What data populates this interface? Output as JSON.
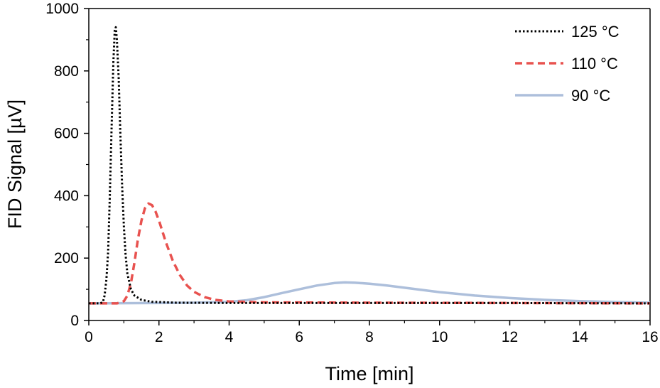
{
  "chart_data": {
    "type": "line",
    "xlabel": "Time [min]",
    "ylabel": "FID Signal [µV]",
    "xlim": [
      0,
      16
    ],
    "ylim": [
      0,
      1000
    ],
    "xticks": [
      0,
      2,
      4,
      6,
      8,
      10,
      12,
      14,
      16
    ],
    "yticks": [
      0,
      200,
      400,
      600,
      800,
      1000
    ],
    "grid": false,
    "legend_position": "top-right",
    "series": [
      {
        "name": "125 °C",
        "style": "dotted",
        "color": "#000000",
        "points": [
          [
            0,
            55
          ],
          [
            0.3,
            55
          ],
          [
            0.4,
            58
          ],
          [
            0.45,
            80
          ],
          [
            0.5,
            130
          ],
          [
            0.55,
            220
          ],
          [
            0.6,
            400
          ],
          [
            0.65,
            620
          ],
          [
            0.7,
            830
          ],
          [
            0.74,
            930
          ],
          [
            0.77,
            940
          ],
          [
            0.8,
            900
          ],
          [
            0.85,
            780
          ],
          [
            0.9,
            600
          ],
          [
            0.95,
            430
          ],
          [
            1.0,
            300
          ],
          [
            1.05,
            210
          ],
          [
            1.1,
            150
          ],
          [
            1.2,
            100
          ],
          [
            1.3,
            80
          ],
          [
            1.5,
            66
          ],
          [
            1.8,
            60
          ],
          [
            2.5,
            57
          ],
          [
            4,
            56
          ],
          [
            8,
            56
          ],
          [
            12,
            56
          ],
          [
            16,
            55
          ]
        ]
      },
      {
        "name": "110 °C",
        "style": "dashed",
        "color": "#e8524f",
        "points": [
          [
            0,
            55
          ],
          [
            0.8,
            55
          ],
          [
            1.0,
            62
          ],
          [
            1.1,
            80
          ],
          [
            1.2,
            120
          ],
          [
            1.3,
            185
          ],
          [
            1.4,
            260
          ],
          [
            1.5,
            320
          ],
          [
            1.6,
            360
          ],
          [
            1.7,
            375
          ],
          [
            1.8,
            370
          ],
          [
            1.9,
            350
          ],
          [
            2.0,
            320
          ],
          [
            2.2,
            250
          ],
          [
            2.4,
            190
          ],
          [
            2.6,
            145
          ],
          [
            2.8,
            112
          ],
          [
            3.0,
            92
          ],
          [
            3.3,
            75
          ],
          [
            3.6,
            66
          ],
          [
            4.0,
            61
          ],
          [
            5.0,
            58
          ],
          [
            8.0,
            57
          ],
          [
            12.0,
            56
          ],
          [
            16.0,
            55
          ]
        ]
      },
      {
        "name": "90 °C",
        "style": "solid",
        "color": "#adbfdb",
        "points": [
          [
            0,
            55
          ],
          [
            2,
            56
          ],
          [
            3,
            57
          ],
          [
            4,
            60
          ],
          [
            4.5,
            65
          ],
          [
            5,
            75
          ],
          [
            5.5,
            88
          ],
          [
            6,
            100
          ],
          [
            6.5,
            112
          ],
          [
            7,
            120
          ],
          [
            7.3,
            122
          ],
          [
            7.6,
            121
          ],
          [
            8,
            118
          ],
          [
            8.5,
            112
          ],
          [
            9,
            105
          ],
          [
            9.5,
            98
          ],
          [
            10,
            91
          ],
          [
            11,
            80
          ],
          [
            12,
            72
          ],
          [
            13,
            66
          ],
          [
            14,
            62
          ],
          [
            15,
            59
          ],
          [
            16,
            57
          ]
        ]
      }
    ]
  }
}
